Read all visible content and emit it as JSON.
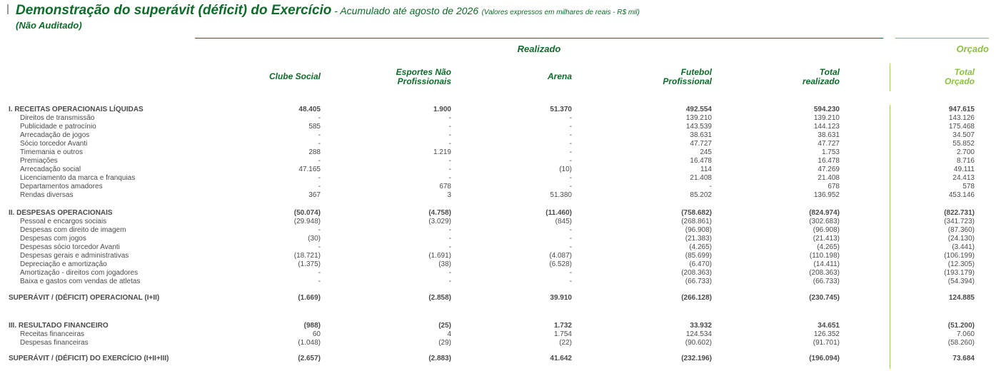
{
  "header": {
    "title_main": "Demonstração do superávit (déficit) do Exercício",
    "title_sub": " - Acumulado até agosto de 2026",
    "title_note": "(Valores expressos em milhares de reais - R$ mil)",
    "not_audited": "(Não Auditado)",
    "realizado": "Realizado",
    "orcado": "Orçado"
  },
  "columns": [
    "Clube Social",
    "Esportes Não\nProfissionais",
    "Arena",
    "Futebol\nProfissional",
    "Total\nrealizado",
    "Total\nOrçado"
  ],
  "rows": [
    {
      "label": "I. RECEITAS OPERACIONAIS LÍQUIDAS",
      "type": "bold",
      "values": [
        "48.405",
        "1.900",
        "51.370",
        "492.554",
        "594.230",
        "947.615"
      ]
    },
    {
      "label": "Direitos de transmissão",
      "type": "sub",
      "values": [
        "-",
        "-",
        "-",
        "139.210",
        "139.210",
        "143.126"
      ]
    },
    {
      "label": "Publicidade e patrocínio",
      "type": "sub",
      "values": [
        "585",
        "-",
        "-",
        "143.539",
        "144.123",
        "175.468"
      ]
    },
    {
      "label": "Arrecadação de jogos",
      "type": "sub",
      "values": [
        "-",
        "-",
        "-",
        "38.631",
        "38.631",
        "34.507"
      ]
    },
    {
      "label": "Sócio torcedor Avanti",
      "type": "sub",
      "values": [
        "-",
        "-",
        "-",
        "47.727",
        "47.727",
        "55.852"
      ]
    },
    {
      "label": "Timemania e outros",
      "type": "sub",
      "values": [
        "288",
        "1.219",
        "-",
        "245",
        "1.753",
        "2.700"
      ]
    },
    {
      "label": "Premiações",
      "type": "sub",
      "values": [
        "-",
        "-",
        "-",
        "16.478",
        "16.478",
        "8.716"
      ]
    },
    {
      "label": "Arrecadação social",
      "type": "sub",
      "values": [
        "47.165",
        "-",
        "(10)",
        "114",
        "47.269",
        "49.111"
      ]
    },
    {
      "label": "Licenciamento da marca e franquias",
      "type": "sub",
      "values": [
        "-",
        "-",
        "-",
        "21.408",
        "21.408",
        "24.413"
      ]
    },
    {
      "label": "Departamentos amadores",
      "type": "sub",
      "values": [
        "-",
        "678",
        "-",
        "-",
        "678",
        "578"
      ]
    },
    {
      "label": "Rendas diversas",
      "type": "sub",
      "values": [
        "367",
        "3",
        "51.380",
        "85.202",
        "136.952",
        "453.146"
      ]
    },
    {
      "label": "II. DESPESAS OPERACIONAIS",
      "type": "bold",
      "values": [
        "(50.074)",
        "(4.758)",
        "(11.460)",
        "(758.682)",
        "(824.974)",
        "(822.731)"
      ]
    },
    {
      "label": "Pessoal e encargos sociais",
      "type": "sub",
      "values": [
        "(29.948)",
        "(3.029)",
        "(845)",
        "(268.861)",
        "(302.683)",
        "(341.723)"
      ]
    },
    {
      "label": "Despesas com direito de imagem",
      "type": "sub",
      "values": [
        "-",
        "-",
        "-",
        "(96.908)",
        "(96.908)",
        "(87.360)"
      ]
    },
    {
      "label": "Despesas com jogos",
      "type": "sub",
      "values": [
        "(30)",
        "-",
        "-",
        "(21.383)",
        "(21.413)",
        "(24.130)"
      ]
    },
    {
      "label": "Despesas sócio torcedor Avanti",
      "type": "sub",
      "values": [
        "-",
        "-",
        "-",
        "(4.265)",
        "(4.265)",
        "(3.441)"
      ]
    },
    {
      "label": "Despesas gerais e administrativas",
      "type": "sub",
      "values": [
        "(18.721)",
        "(1.691)",
        "(4.087)",
        "(85.699)",
        "(110.198)",
        "(106.199)"
      ]
    },
    {
      "label": "Depreciação e amortização",
      "type": "sub",
      "values": [
        "(1.375)",
        "(38)",
        "(6.528)",
        "(6.470)",
        "(14.411)",
        "(12.305)"
      ]
    },
    {
      "label": "Amortização  - direitos com jogadores",
      "type": "sub",
      "values": [
        "-",
        "-",
        "-",
        "(208.363)",
        "(208.363)",
        "(193.179)"
      ]
    },
    {
      "label": "Baixa e gastos com vendas de atletas",
      "type": "sub",
      "values": [
        "-",
        "-",
        "-",
        "(66.733)",
        "(66.733)",
        "(54.394)"
      ]
    },
    {
      "label": "SUPERÁVIT / (DÉFICIT) OPERACIONAL (I+II)",
      "type": "bold",
      "values": [
        "(1.669)",
        "(2.858)",
        "39.910",
        "(266.128)",
        "(230.745)",
        "124.885"
      ]
    },
    {
      "label": "III. RESULTADO FINANCEIRO",
      "type": "bold",
      "values": [
        "(988)",
        "(25)",
        "1.732",
        "33.932",
        "34.651",
        "(51.200)"
      ]
    },
    {
      "label": "Receitas financeiras",
      "type": "sub",
      "values": [
        "60",
        "4",
        "1.754",
        "124.534",
        "126.352",
        "7.060"
      ]
    },
    {
      "label": "Despesas financeiras",
      "type": "sub",
      "values": [
        "(1.048)",
        "(29)",
        "(22)",
        "(90.602)",
        "(91.701)",
        "(58.260)"
      ]
    },
    {
      "label": "SUPERÁVIT / (DÉFICIT) DO EXERCÍCIO  (I+II+III)",
      "type": "bold",
      "values": [
        "(2.657)",
        "(2.883)",
        "41.642",
        "(232.196)",
        "(196.094)",
        "73.684"
      ]
    }
  ]
}
